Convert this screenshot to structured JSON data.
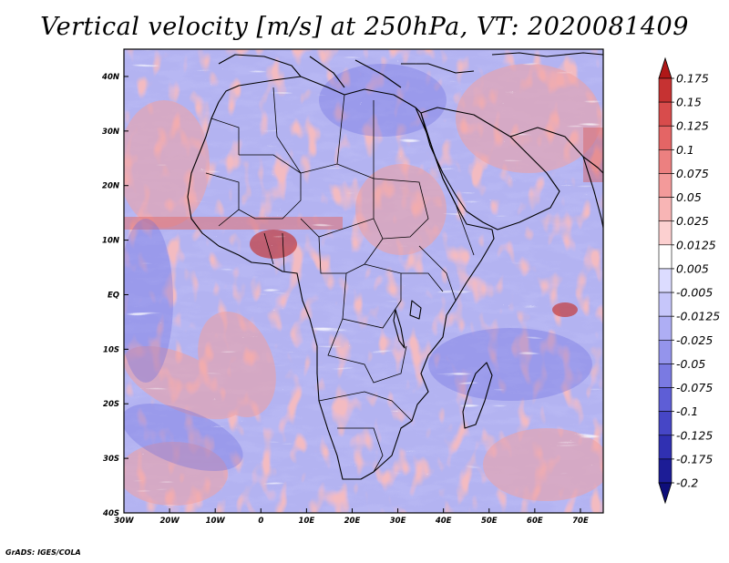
{
  "figure": {
    "title": "Vertical velocity [m/s] at 250hPa, VT: 2020081409",
    "credit": "GrADS: IGES/COLA"
  },
  "map": {
    "lon_range": [
      -30,
      75
    ],
    "lat_range": [
      -40,
      45
    ],
    "lon_ticks": [
      {
        "value": -30,
        "label": "30W"
      },
      {
        "value": -20,
        "label": "20W"
      },
      {
        "value": -10,
        "label": "10W"
      },
      {
        "value": 0,
        "label": "0"
      },
      {
        "value": 10,
        "label": "10E"
      },
      {
        "value": 20,
        "label": "20E"
      },
      {
        "value": 30,
        "label": "30E"
      },
      {
        "value": 40,
        "label": "40E"
      },
      {
        "value": 50,
        "label": "50E"
      },
      {
        "value": 60,
        "label": "60E"
      },
      {
        "value": 70,
        "label": "70E"
      }
    ],
    "lat_ticks": [
      {
        "value": 40,
        "label": "40N"
      },
      {
        "value": 30,
        "label": "30N"
      },
      {
        "value": 20,
        "label": "20N"
      },
      {
        "value": 10,
        "label": "10N"
      },
      {
        "value": 0,
        "label": "EQ"
      },
      {
        "value": -10,
        "label": "10S"
      },
      {
        "value": -20,
        "label": "20S"
      },
      {
        "value": -30,
        "label": "30S"
      },
      {
        "value": -40,
        "label": "40S"
      }
    ]
  },
  "chart_data": {
    "type": "heatmap",
    "title": "Vertical velocity [m/s] at 250hPa, VT: 2020081409",
    "variable": "vertical velocity",
    "units": "m/s",
    "level": "250hPa",
    "valid_time": "2020081409",
    "xlabel": "",
    "ylabel": "",
    "xlim": [
      -30,
      75
    ],
    "ylim": [
      -40,
      45
    ],
    "colorbar_levels": [
      "0.175",
      "0.15",
      "0.125",
      "0.1",
      "0.075",
      "0.05",
      "0.025",
      "0.0125",
      "0.005",
      "-0.005",
      "-0.0125",
      "-0.025",
      "-0.05",
      "-0.075",
      "-0.1",
      "-0.125",
      "-0.175",
      "-0.2"
    ],
    "colorbar_colors": [
      "#b01818",
      "#c63232",
      "#d84c4c",
      "#e46565",
      "#ec8080",
      "#f39a9a",
      "#f8b5b5",
      "#fcd0d0",
      "#ffffff",
      "#dcdcff",
      "#c6c6fa",
      "#aeaef4",
      "#9494ec",
      "#7a7ae2",
      "#5e5ed6",
      "#4646c6",
      "#3030b2",
      "#1c1c96",
      "#0e0e7a"
    ]
  }
}
